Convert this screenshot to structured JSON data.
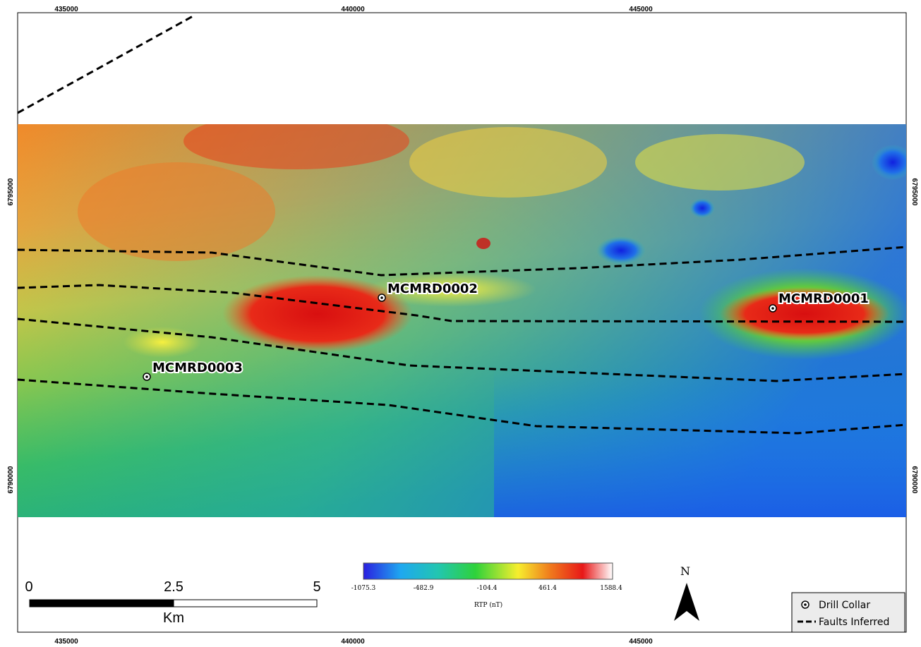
{
  "map": {
    "easting_ticks": [
      "435000",
      "440000",
      "445000"
    ],
    "northing_ticks": [
      "6795000",
      "6790000"
    ]
  },
  "drill_collars": [
    {
      "name": "MCMRD0001"
    },
    {
      "name": "MCMRD0002"
    },
    {
      "name": "MCMRD0003"
    }
  ],
  "colorbar": {
    "label": "RTP (nT)",
    "ticks": [
      "-1075.3",
      "-482.9",
      "-104.4",
      "461.4",
      "1588.4"
    ],
    "colors": [
      "#2a1fe0",
      "#1ea8f0",
      "#22c6b0",
      "#2ed23a",
      "#f6ee2e",
      "#f07a1c",
      "#e81818",
      "#ffffff"
    ]
  },
  "scale_bar": {
    "ticks": [
      "0",
      "2.5",
      "5"
    ],
    "unit": "Km"
  },
  "north_arrow": {
    "label": "N"
  },
  "legend": {
    "items": [
      {
        "icon": "drill-collar-icon",
        "label": "Drill Collar"
      },
      {
        "icon": "fault-line-icon",
        "label": "Faults Inferred"
      }
    ]
  }
}
